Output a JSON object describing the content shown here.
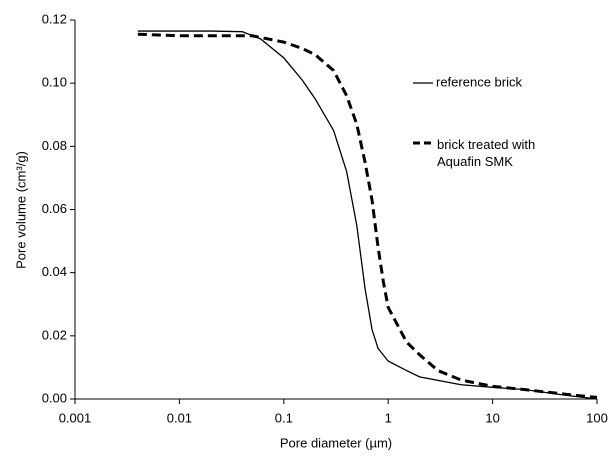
{
  "chart_data": {
    "type": "line",
    "x_label": "Pore diameter (µm)",
    "y_label": "Pore volume (cm³/g)",
    "xscale": "log",
    "xlim": [
      0.001,
      100
    ],
    "xticks": [
      0.001,
      0.01,
      0.1,
      1,
      10,
      100
    ],
    "ylim": [
      0,
      0.12
    ],
    "yticks": [
      {
        "value": 0,
        "label": "0.00"
      },
      {
        "value": 0.02,
        "label": "0.02"
      },
      {
        "value": 0.04,
        "label": "0.04"
      },
      {
        "value": 0.06,
        "label": "0.06"
      },
      {
        "value": 0.08,
        "label": "0.08"
      },
      {
        "value": 0.1,
        "label": "0.10"
      },
      {
        "value": 0.12,
        "label": "0.12"
      }
    ],
    "grid": false,
    "series": [
      {
        "name": "reference brick",
        "color": "#000000",
        "dash": false,
        "x": [
          0.004,
          0.01,
          0.02,
          0.04,
          0.06,
          0.1,
          0.15,
          0.2,
          0.3,
          0.4,
          0.5,
          0.6,
          0.7,
          0.8,
          1,
          1.5,
          2,
          5,
          10,
          20,
          50,
          100
        ],
        "values": [
          0.1165,
          0.1165,
          0.1165,
          0.1163,
          0.114,
          0.108,
          0.101,
          0.095,
          0.085,
          0.072,
          0.055,
          0.035,
          0.022,
          0.016,
          0.012,
          0.009,
          0.007,
          0.0045,
          0.0037,
          0.003,
          0.0012,
          0
        ]
      },
      {
        "name": "brick treated with Aquafin SMK",
        "color": "#000000",
        "dash": true,
        "x": [
          0.004,
          0.01,
          0.02,
          0.05,
          0.1,
          0.15,
          0.2,
          0.3,
          0.4,
          0.5,
          0.6,
          0.7,
          0.8,
          0.9,
          1,
          1.5,
          2,
          3,
          5,
          10,
          20,
          50,
          100
        ],
        "values": [
          0.1155,
          0.115,
          0.115,
          0.115,
          0.113,
          0.111,
          0.109,
          0.104,
          0.096,
          0.087,
          0.075,
          0.063,
          0.048,
          0.037,
          0.029,
          0.018,
          0.014,
          0.009,
          0.006,
          0.004,
          0.003,
          0.0015,
          0.0005
        ]
      }
    ]
  }
}
